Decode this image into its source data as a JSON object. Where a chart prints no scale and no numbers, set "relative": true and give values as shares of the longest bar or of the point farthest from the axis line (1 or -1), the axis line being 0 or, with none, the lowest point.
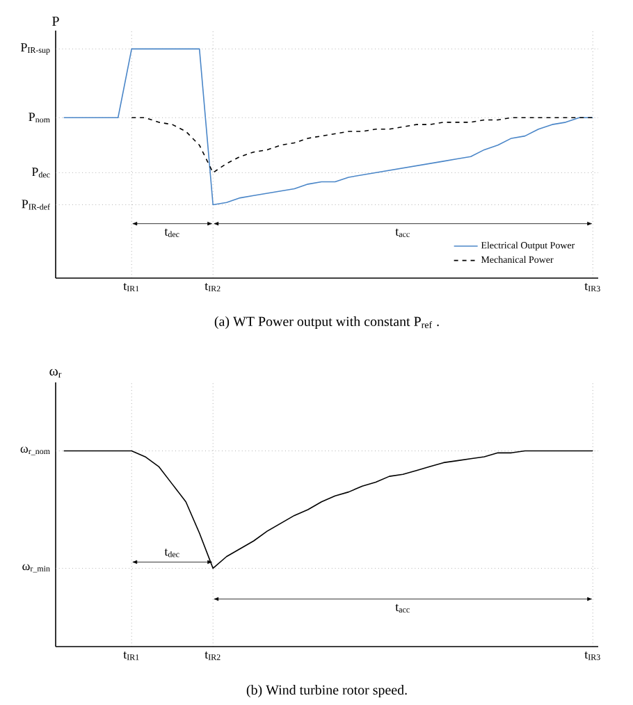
{
  "chart_data": [
    {
      "type": "line",
      "ylabel": "P",
      "relative": true,
      "grid": "x",
      "legend": "bottom right",
      "marker": "none",
      "categories": [
        null,
        null,
        null,
        null,
        null,
        "t$_{IR1}$",
        null,
        null,
        null,
        null,
        null,
        "t$_{IR2}$",
        null,
        null,
        null,
        null,
        null,
        null,
        null,
        null,
        null,
        null,
        null,
        null,
        null,
        null,
        null,
        null,
        null,
        null,
        null,
        null,
        null,
        null,
        null,
        null,
        null,
        null,
        null,
        "t$_{IR3}$"
      ],
      "series": [
        {
          "name": "Electrical Output Power",
          "color": "#4a86c8",
          "line_style": "solid",
          "values": [
            0.7,
            0.7,
            0.7,
            0.7,
            0.7,
            1.0,
            1.0,
            1.0,
            1.0,
            1.0,
            1.0,
            0.32,
            0.33,
            0.35,
            0.36,
            0.37,
            0.38,
            0.39,
            0.41,
            0.42,
            0.42,
            0.44,
            0.45,
            0.46,
            0.47,
            0.48,
            0.49,
            0.5,
            0.51,
            0.52,
            0.53,
            0.56,
            0.58,
            0.61,
            0.62,
            0.65,
            0.67,
            0.68,
            0.7,
            0.7
          ]
        },
        {
          "name": "Mechanical Power",
          "color": "#000000",
          "line_style": "dashed",
          "values": [
            null,
            null,
            null,
            null,
            null,
            0.7,
            0.7,
            0.68,
            0.67,
            0.64,
            0.58,
            0.46,
            0.5,
            0.53,
            0.55,
            0.56,
            0.58,
            0.59,
            0.61,
            0.62,
            0.63,
            0.64,
            0.64,
            0.65,
            0.65,
            0.66,
            0.67,
            0.67,
            0.68,
            0.68,
            0.68,
            0.69,
            0.69,
            0.7,
            0.7,
            0.7,
            0.7,
            0.7,
            0.7,
            0.7
          ]
        }
      ],
      "ref_lines": [
        {
          "axis": "y",
          "value": 1.0,
          "label": "P$_{IR-sup}$",
          "color": "#888888",
          "line_style": "dotted"
        },
        {
          "axis": "y",
          "value": 0.7,
          "label": "P$_{nom}$",
          "color": "#888888",
          "line_style": "dotted"
        },
        {
          "axis": "y",
          "value": 0.46,
          "label": "P$_{dec}$",
          "color": "#888888",
          "line_style": "dotted"
        },
        {
          "axis": "y",
          "value": 0.32,
          "label": "P$_{IR-def}$",
          "color": "#888888",
          "line_style": "dotted"
        }
      ],
      "annotations": [
        "t$_{dec}$",
        "t$_{acc}$",
        "(a) WT Power output with constant P$_{ref}$ ."
      ]
    },
    {
      "type": "line",
      "ylabel": "ω$_{r}$",
      "relative": true,
      "grid": "x",
      "marker": "none",
      "categories": [
        null,
        null,
        null,
        null,
        null,
        "t$_{IR1}$",
        null,
        null,
        null,
        null,
        null,
        "t$_{IR2}$",
        null,
        null,
        null,
        null,
        null,
        null,
        null,
        null,
        null,
        null,
        null,
        null,
        null,
        null,
        null,
        null,
        null,
        null,
        null,
        null,
        null,
        null,
        null,
        null,
        null,
        null,
        null,
        "t$_{IR3}$"
      ],
      "series": [
        {
          "color": "#000000",
          "line_style": "solid",
          "values": [
            1.0,
            1.0,
            1.0,
            1.0,
            1.0,
            1.0,
            0.97,
            0.92,
            0.83,
            0.74,
            0.58,
            0.4,
            0.46,
            0.5,
            0.54,
            0.59,
            0.63,
            0.67,
            0.7,
            0.74,
            0.77,
            0.79,
            0.82,
            0.84,
            0.87,
            0.88,
            0.9,
            0.92,
            0.94,
            0.95,
            0.96,
            0.97,
            0.99,
            0.99,
            1.0,
            1.0,
            1.0,
            1.0,
            1.0,
            1.0
          ]
        }
      ],
      "ref_lines": [
        {
          "axis": "y",
          "value": 1.0,
          "label": "ω$_{r_nom}$",
          "color": "#888888",
          "line_style": "dotted"
        },
        {
          "axis": "y",
          "value": 0.4,
          "label": "ω$_{r_min}$",
          "color": "#888888",
          "line_style": "dotted"
        }
      ],
      "annotations": [
        "t$_{dec}$",
        "t$_{acc}$",
        "(b) Wind turbine rotor speed."
      ]
    }
  ]
}
